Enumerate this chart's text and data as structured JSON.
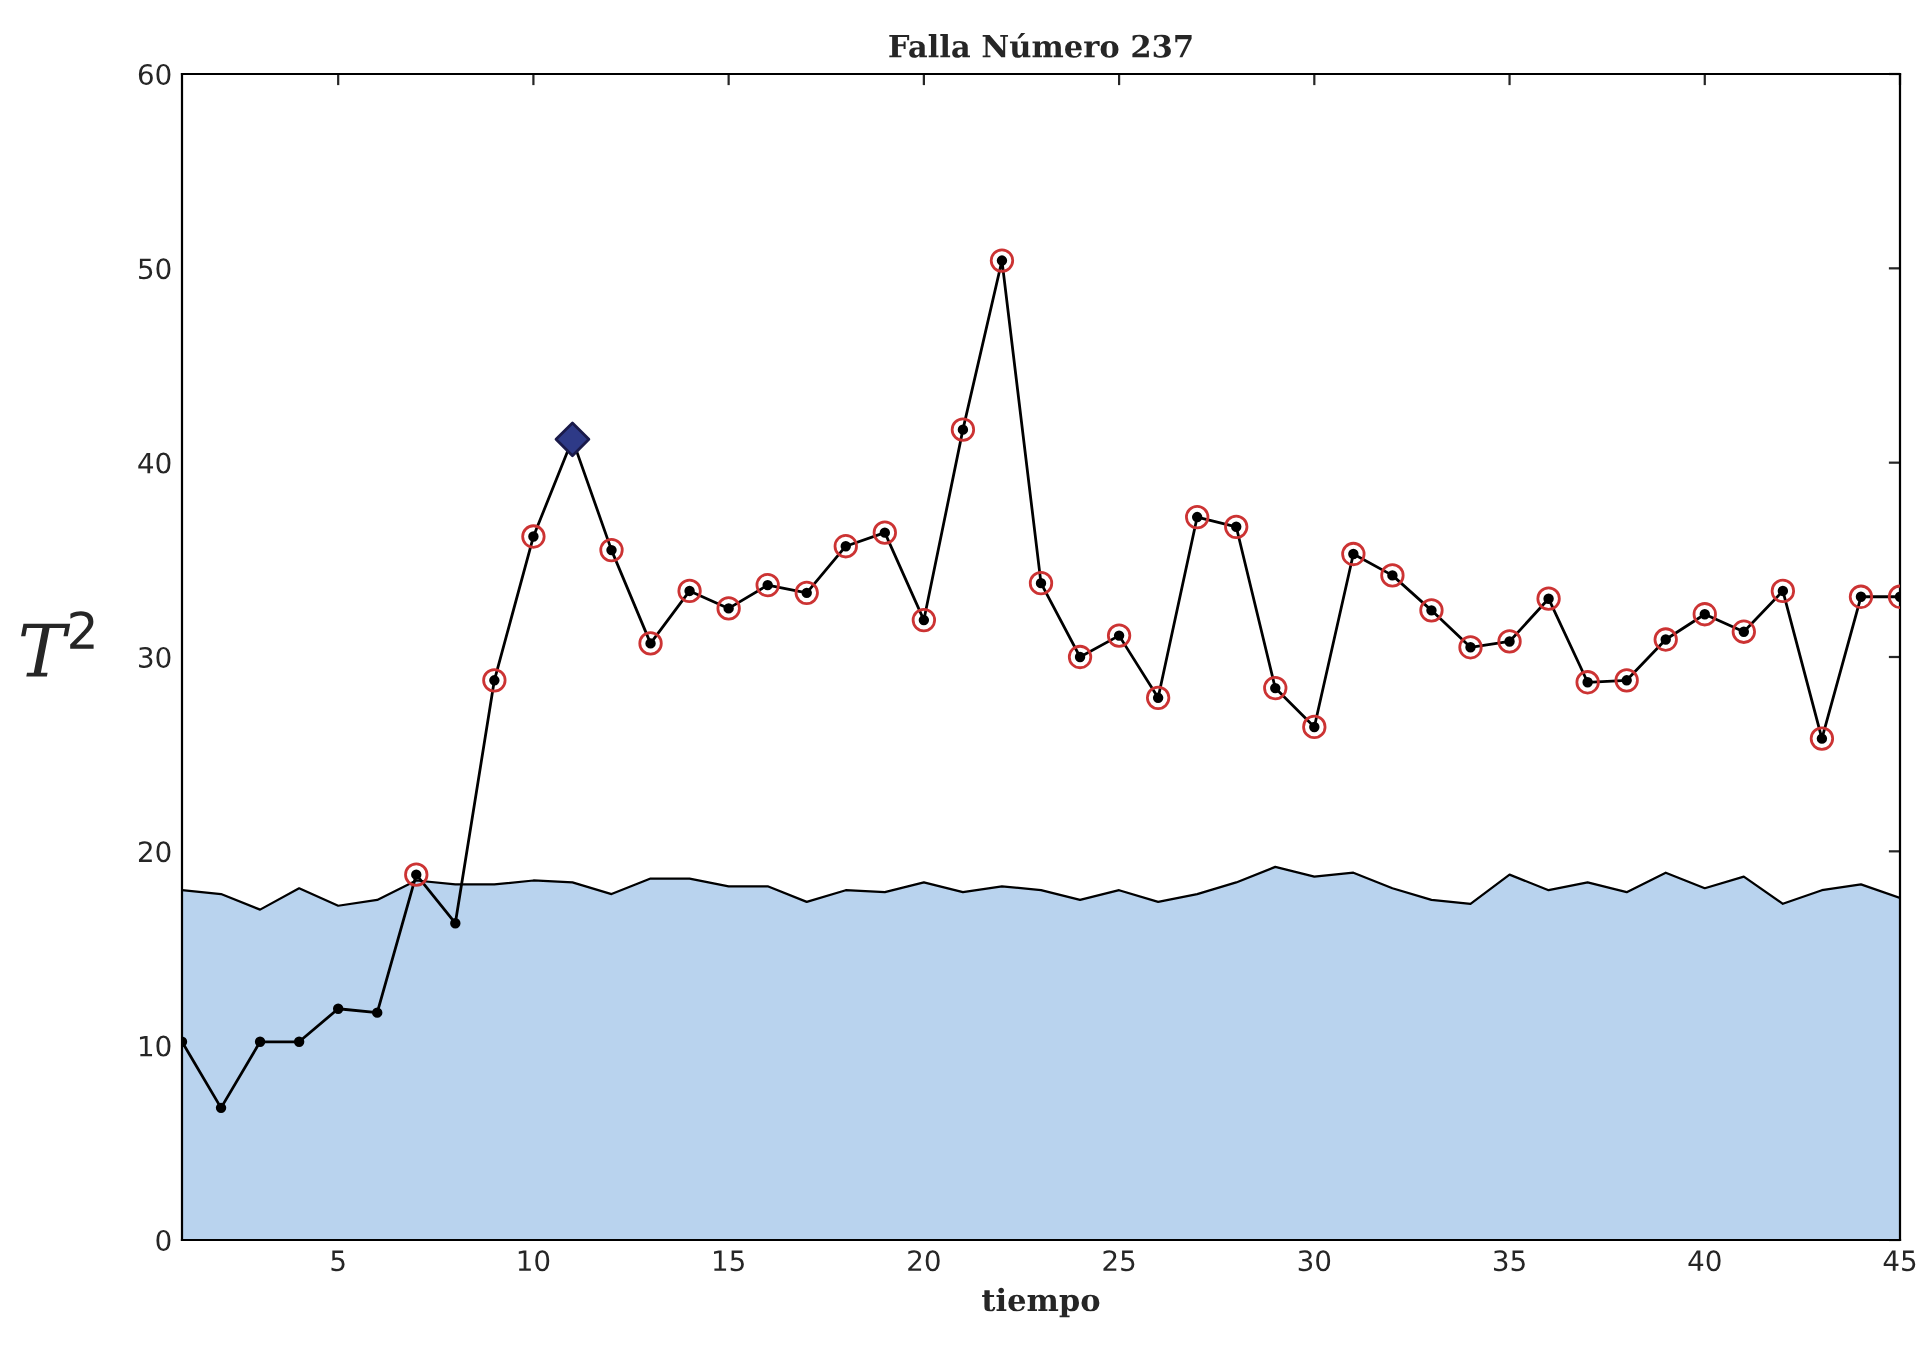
{
  "chart_data": {
    "type": "line",
    "title": "Falla Número 237",
    "xlabel": "tiempo",
    "ylabel": "T$^{2}$",
    "x": [
      1,
      2,
      3,
      4,
      5,
      6,
      7,
      8,
      9,
      10,
      11,
      12,
      13,
      14,
      15,
      16,
      17,
      18,
      19,
      20,
      21,
      22,
      23,
      24,
      25,
      26,
      27,
      28,
      29,
      30,
      31,
      32,
      33,
      34,
      35,
      36,
      37,
      38,
      39,
      40,
      41,
      42,
      43,
      44,
      45
    ],
    "series": [
      {
        "type": "area",
        "color": "#b9d3ee",
        "values": [
          18.0,
          17.8,
          17.0,
          18.1,
          17.2,
          17.5,
          18.5,
          18.3,
          18.3,
          18.5,
          18.4,
          17.8,
          18.6,
          18.6,
          18.2,
          18.2,
          17.4,
          18.0,
          17.9,
          18.4,
          17.9,
          18.2,
          18.0,
          17.5,
          18.0,
          17.4,
          17.8,
          18.4,
          19.2,
          18.7,
          18.9,
          18.1,
          17.5,
          17.3,
          18.8,
          18.0,
          18.4,
          17.9,
          18.9,
          18.1,
          18.7,
          17.3,
          18.0,
          18.3,
          17.6
        ]
      },
      {
        "color": "#000000",
        "marker": "circle",
        "values": [
          10.2,
          6.8,
          10.2,
          10.2,
          11.9,
          11.7,
          18.8,
          16.3,
          28.8,
          36.2,
          41.2,
          35.5,
          30.7,
          33.4,
          32.5,
          33.7,
          33.3,
          35.7,
          36.4,
          31.9,
          41.7,
          50.4,
          33.8,
          30.0,
          31.1,
          27.9,
          37.2,
          36.7,
          28.4,
          26.4,
          35.3,
          34.2,
          32.4,
          30.5,
          30.8,
          33.0,
          28.7,
          28.8,
          30.9,
          32.2,
          31.3,
          33.4,
          25.8,
          33.1,
          33.1
        ]
      },
      {
        "type": "scatter",
        "color": "#cc3333",
        "marker": "circle",
        "values": [
          null,
          null,
          null,
          null,
          null,
          null,
          18.8,
          null,
          28.8,
          36.2,
          null,
          35.5,
          30.7,
          33.4,
          32.5,
          33.7,
          33.3,
          35.7,
          36.4,
          31.9,
          41.7,
          50.4,
          33.8,
          30.0,
          31.1,
          27.9,
          37.2,
          36.7,
          28.4,
          26.4,
          35.3,
          34.2,
          32.4,
          30.5,
          30.8,
          33.0,
          28.7,
          28.8,
          30.9,
          32.2,
          31.3,
          33.4,
          25.8,
          33.1,
          33.1
        ]
      },
      {
        "type": "scatter",
        "color": "#2e3a87",
        "marker": "diamond",
        "values": [
          null,
          null,
          null,
          null,
          null,
          null,
          null,
          null,
          null,
          null,
          41.2,
          null,
          null,
          null,
          null,
          null,
          null,
          null,
          null,
          null,
          null,
          null,
          null,
          null,
          null,
          null,
          null,
          null,
          null,
          null,
          null,
          null,
          null,
          null,
          null,
          null,
          null,
          null,
          null,
          null,
          null,
          null,
          null,
          null,
          null
        ]
      }
    ],
    "xlim": [
      1,
      45
    ],
    "xticks": [
      5,
      10,
      15,
      20,
      25,
      30,
      35,
      40,
      45
    ],
    "ylim": [
      0,
      60
    ],
    "yticks": [
      0,
      10,
      20,
      30,
      40,
      50,
      60
    ],
    "grid": false,
    "legend": false
  }
}
